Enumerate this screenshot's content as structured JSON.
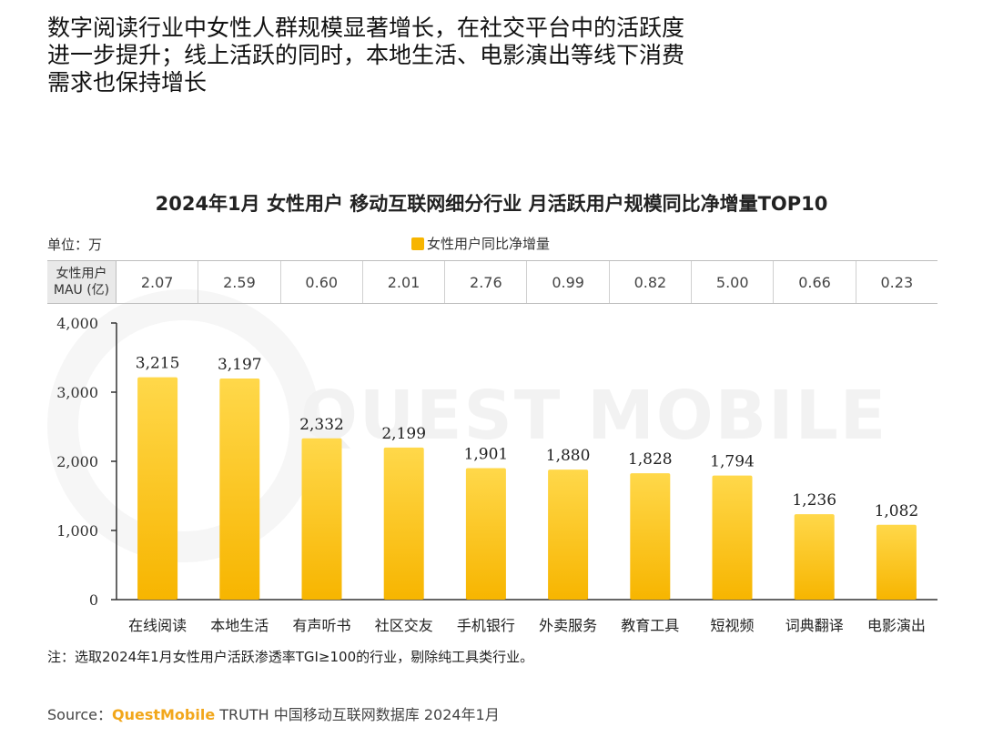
{
  "headline": {
    "line1": "数字阅读行业中女性人群规模显著增长，在社交平台中的活跃度",
    "line2": "进一步提升；线上活跃的同时，本地生活、电影演出等线下消费",
    "line3": "需求也保持增长"
  },
  "watermark": "QUEST MOBILE",
  "unit_label": "单位：万",
  "mau_table": {
    "header_line1": "女性用户",
    "header_line2": "MAU (亿)",
    "values": [
      "2.07",
      "2.59",
      "0.60",
      "2.01",
      "2.76",
      "0.99",
      "0.82",
      "5.00",
      "0.66",
      "0.23"
    ]
  },
  "note": "注：选取2024年1月女性用户活跃渗透率TGI≥100的行业，剔除纯工具类行业。",
  "source": {
    "prefix": "Source：",
    "brand": "QuestMobile",
    "rest": " TRUTH 中国移动互联网数据库 2024年1月"
  },
  "colors": {
    "bar": "#f7b500",
    "bar_light": "#ffd84a",
    "axis": "#333333"
  },
  "chart_data": {
    "type": "bar",
    "title": "2024年1月 女性用户 移动互联网细分行业 月活跃用户规模同比净增量TOP10",
    "categories": [
      "在线阅读",
      "本地生活",
      "有声听书",
      "社区交友",
      "手机银行",
      "外卖服务",
      "教育工具",
      "短视频",
      "词典翻译",
      "电影演出"
    ],
    "series": [
      {
        "name": "女性用户同比净增量",
        "values": [
          3215,
          3197,
          2332,
          2199,
          1901,
          1880,
          1828,
          1794,
          1236,
          1082
        ],
        "labels": [
          "3,215",
          "3,197",
          "2,332",
          "2,199",
          "1,901",
          "1,880",
          "1,828",
          "1,794",
          "1,236",
          "1,082"
        ]
      }
    ],
    "y_ticks": [
      "0",
      "1,000",
      "2,000",
      "3,000",
      "4,000"
    ],
    "ylim": [
      0,
      4000
    ],
    "xlabel": "",
    "ylabel": "",
    "grid": false,
    "legend_position": "top-center"
  }
}
